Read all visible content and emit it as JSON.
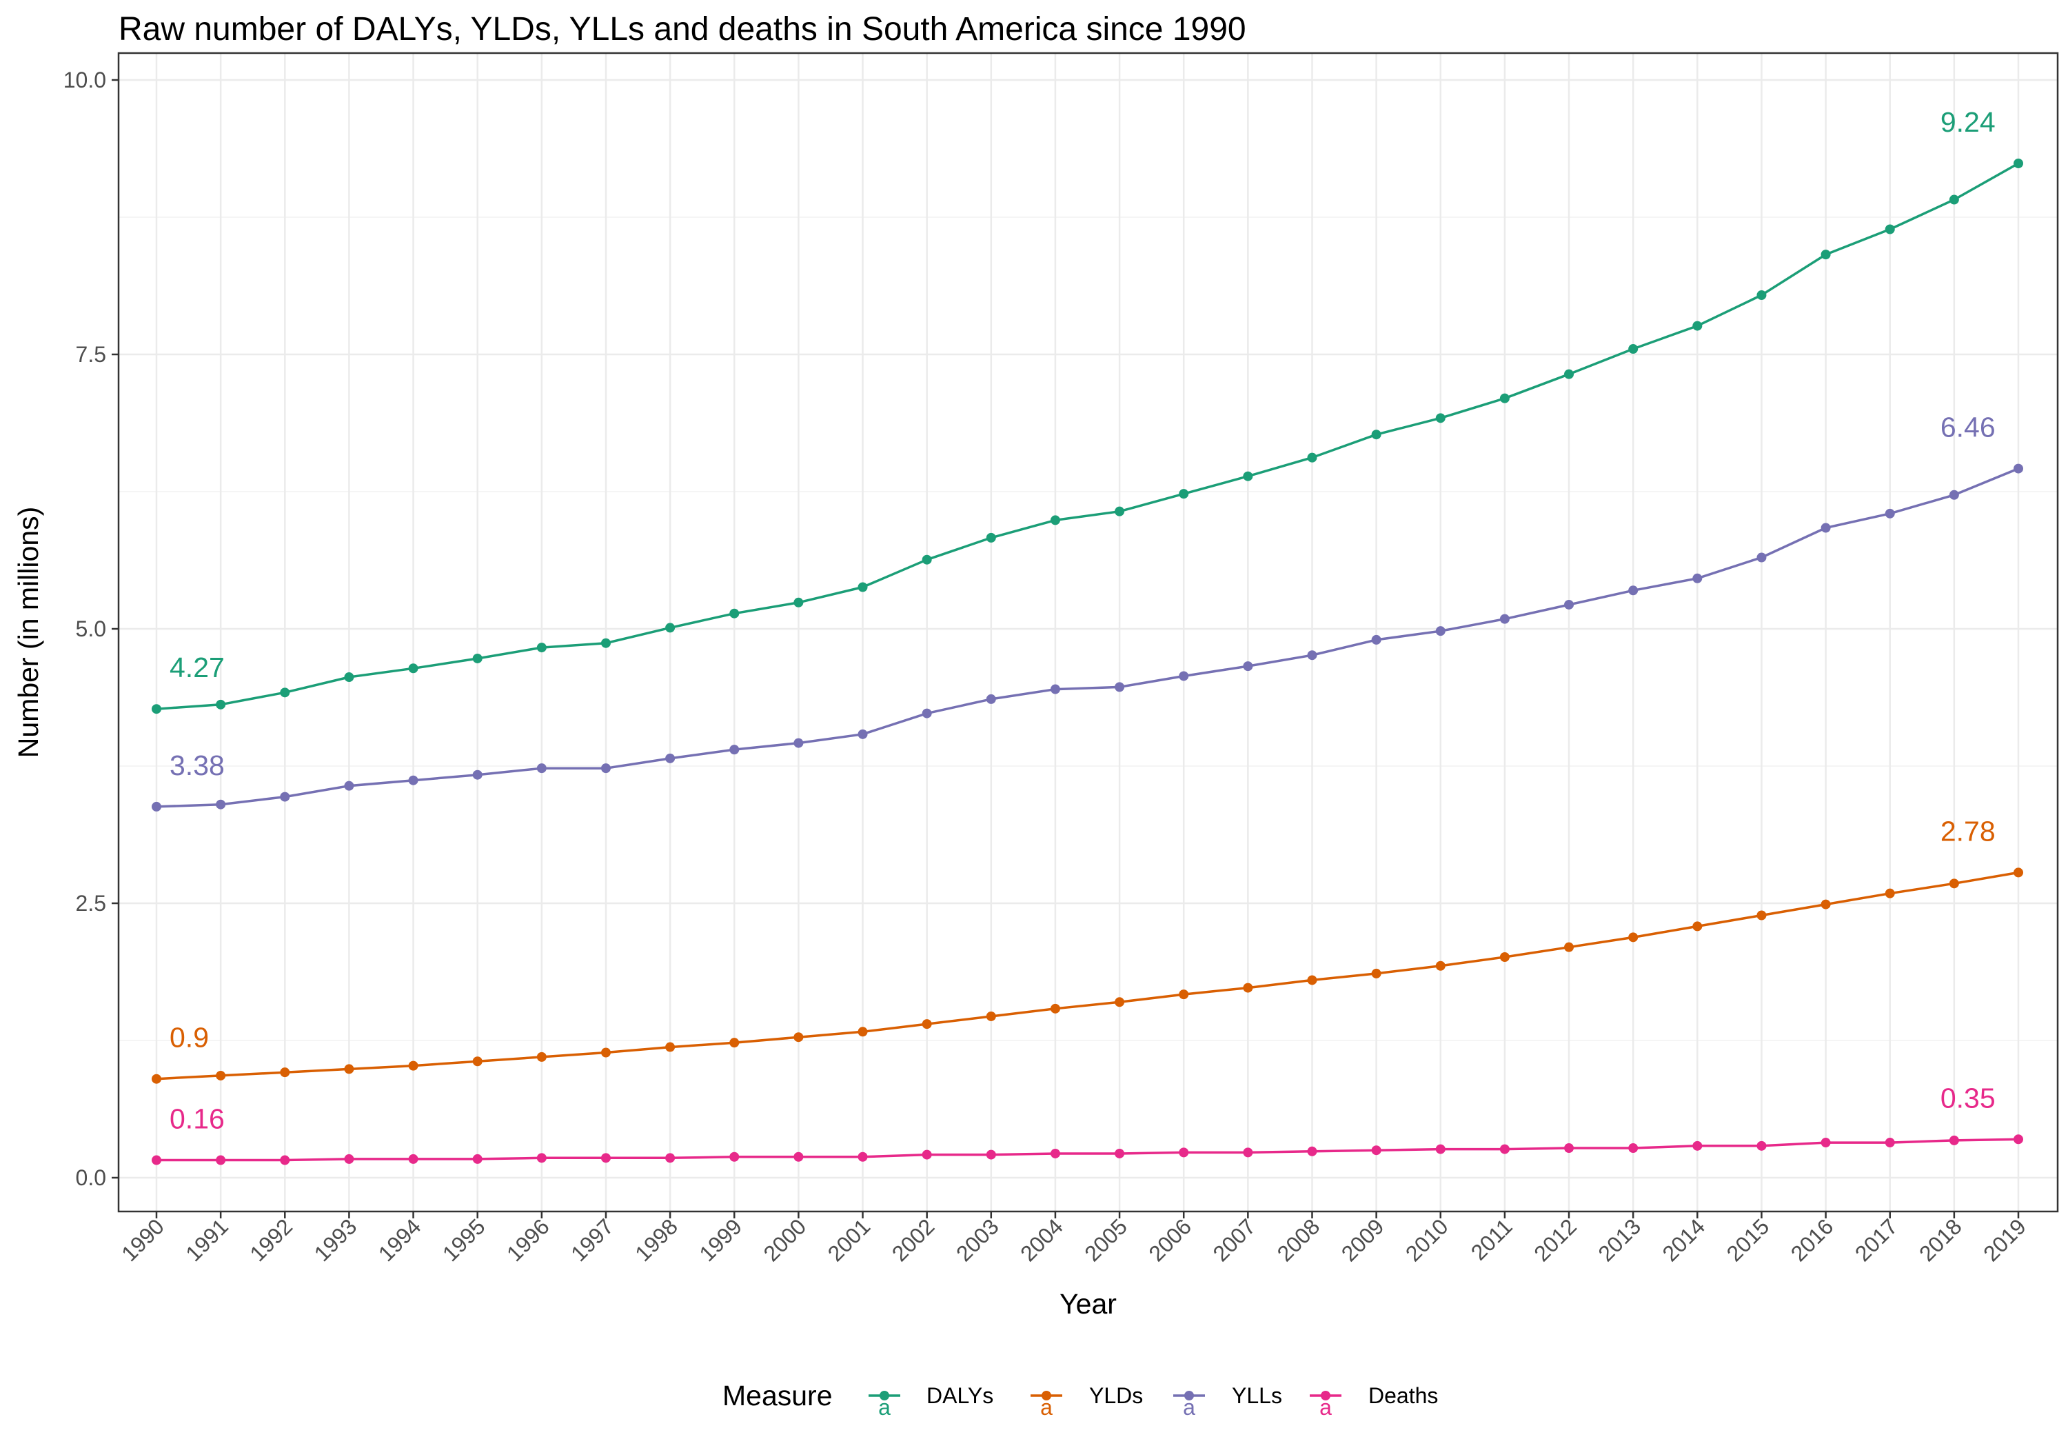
{
  "chart_data": {
    "type": "line",
    "title": "Raw number of DALYs, YLDs, YLLs and deaths in South America since 1990",
    "xlabel": "Year",
    "ylabel": "Number (in millions)",
    "ylim": [
      0,
      10
    ],
    "yticks": [
      "0.0",
      "2.5",
      "5.0",
      "7.5",
      "10.0"
    ],
    "yticks_values": [
      0,
      2.5,
      5,
      7.5,
      10
    ],
    "grid": true,
    "x": [
      "1990",
      "1991",
      "1992",
      "1993",
      "1994",
      "1995",
      "1996",
      "1997",
      "1998",
      "1999",
      "2000",
      "2001",
      "2002",
      "2003",
      "2004",
      "2005",
      "2006",
      "2007",
      "2008",
      "2009",
      "2010",
      "2011",
      "2012",
      "2013",
      "2014",
      "2015",
      "2016",
      "2017",
      "2018",
      "2019"
    ],
    "series": [
      {
        "name": "DALYs",
        "color": "#1b9e77",
        "values": [
          4.27,
          4.31,
          4.42,
          4.56,
          4.64,
          4.73,
          4.83,
          4.87,
          5.01,
          5.14,
          5.24,
          5.38,
          5.63,
          5.83,
          5.99,
          6.07,
          6.23,
          6.39,
          6.56,
          6.77,
          6.92,
          7.1,
          7.32,
          7.55,
          7.76,
          8.04,
          8.41,
          8.64,
          8.91,
          9.24
        ],
        "start_label": "4.27",
        "end_label": "9.24"
      },
      {
        "name": "YLDs",
        "color": "#d95f02",
        "values": [
          0.9,
          0.93,
          0.96,
          0.99,
          1.02,
          1.06,
          1.1,
          1.14,
          1.19,
          1.23,
          1.28,
          1.33,
          1.4,
          1.47,
          1.54,
          1.6,
          1.67,
          1.73,
          1.8,
          1.86,
          1.93,
          2.01,
          2.1,
          2.19,
          2.29,
          2.39,
          2.49,
          2.59,
          2.68,
          2.78
        ],
        "start_label": "0.9",
        "end_label": "2.78"
      },
      {
        "name": "YLLs",
        "color": "#7570b3",
        "values": [
          3.38,
          3.4,
          3.47,
          3.57,
          3.62,
          3.67,
          3.73,
          3.73,
          3.82,
          3.9,
          3.96,
          4.04,
          4.23,
          4.36,
          4.45,
          4.47,
          4.57,
          4.66,
          4.76,
          4.9,
          4.98,
          5.09,
          5.22,
          5.35,
          5.46,
          5.65,
          5.92,
          6.05,
          6.22,
          6.46
        ],
        "start_label": "3.38",
        "end_label": "6.46"
      },
      {
        "name": "Deaths",
        "color": "#e7298a",
        "values": [
          0.16,
          0.16,
          0.16,
          0.17,
          0.17,
          0.17,
          0.18,
          0.18,
          0.18,
          0.19,
          0.19,
          0.19,
          0.21,
          0.21,
          0.22,
          0.22,
          0.23,
          0.23,
          0.24,
          0.25,
          0.26,
          0.26,
          0.27,
          0.27,
          0.29,
          0.29,
          0.32,
          0.32,
          0.34,
          0.35
        ],
        "start_label": "0.16",
        "end_label": "0.35"
      }
    ],
    "legend": {
      "title": "Measure",
      "position": "bottom",
      "key_glyph": "a",
      "items": [
        "DALYs",
        "YLDs",
        "YLLs",
        "Deaths"
      ]
    }
  }
}
